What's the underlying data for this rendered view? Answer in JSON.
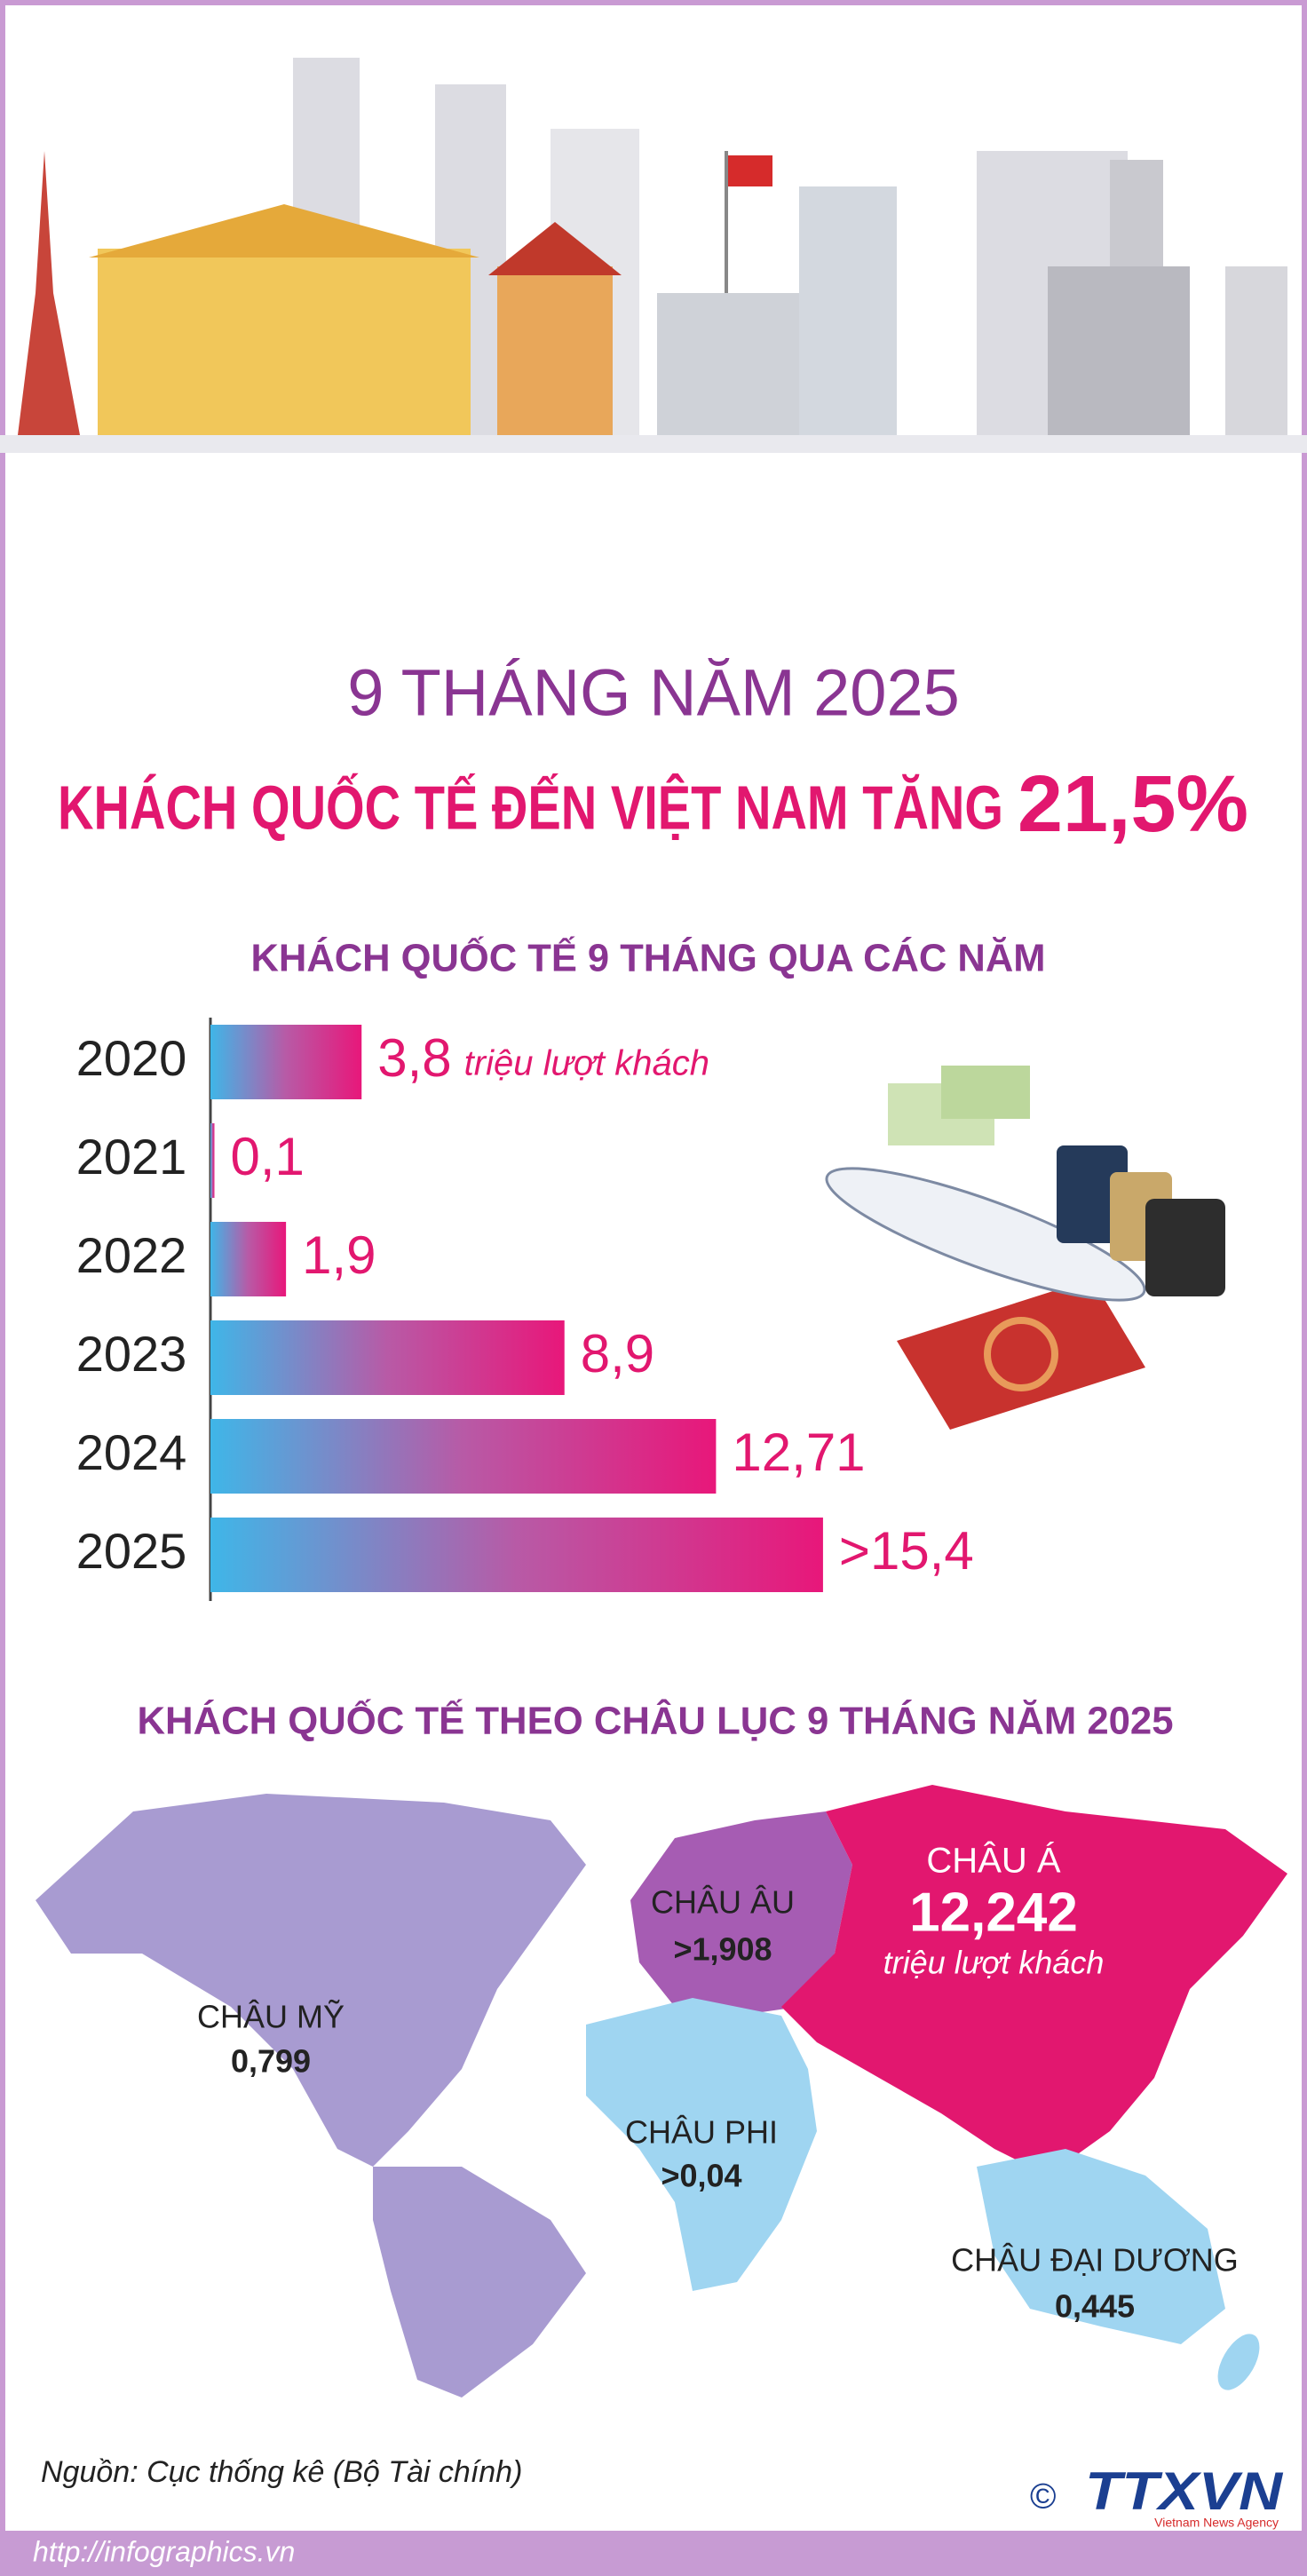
{
  "header": {
    "title": "9 THÁNG NĂM 2025",
    "subtitle": "KHÁCH QUỐC TẾ ĐẾN VIỆT NAM TĂNG",
    "highlight": "21,5%"
  },
  "chart_data": [
    {
      "type": "bar",
      "orientation": "horizontal",
      "title": "KHÁCH QUỐC TẾ 9 THÁNG QUA CÁC NĂM",
      "categories": [
        "2020",
        "2021",
        "2022",
        "2023",
        "2024",
        "2025"
      ],
      "values": [
        3.8,
        0.1,
        1.9,
        8.9,
        12.71,
        15.4
      ],
      "value_labels": [
        "3,8",
        "0,1",
        "1,9",
        "8,9",
        "12,71",
        ">15,4"
      ],
      "annotation": "triệu lượt khách",
      "gradient": [
        "#3fb6e8",
        "#b85aa6",
        "#e8177a"
      ]
    }
  ],
  "map": {
    "title": "KHÁCH QUỐC TẾ THEO CHÂU LỤC 9 THÁNG NĂM 2025",
    "regions": [
      {
        "name": "CHÂU MỸ",
        "value": "0,799"
      },
      {
        "name": "CHÂU ÂU",
        "value": ">1,908"
      },
      {
        "name": "CHÂU Á",
        "value": "12,242",
        "unit": "triệu lượt khách"
      },
      {
        "name": "CHÂU PHI",
        "value": ">0,04"
      },
      {
        "name": "CHÂU ĐẠI DƯƠNG",
        "value": "0,445"
      }
    ]
  },
  "footer": {
    "source": "Nguồn: Cục thống kê (Bộ Tài chính)",
    "url": "http://infographics.vn",
    "logo": "TTXVN",
    "agency": "Vietnam News Agency",
    "copyright": "©"
  }
}
